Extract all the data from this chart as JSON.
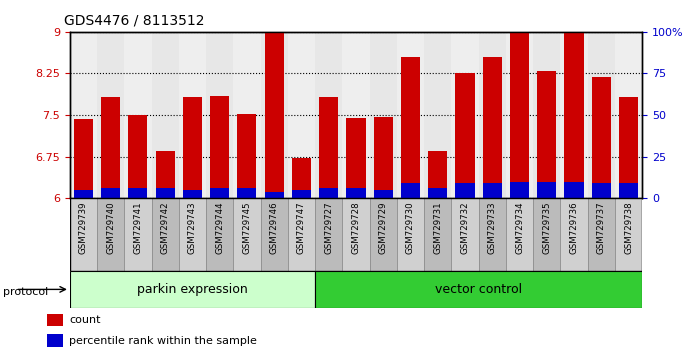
{
  "title": "GDS4476 / 8113512",
  "samples": [
    "GSM729739",
    "GSM729740",
    "GSM729741",
    "GSM729742",
    "GSM729743",
    "GSM729744",
    "GSM729745",
    "GSM729746",
    "GSM729747",
    "GSM729727",
    "GSM729728",
    "GSM729729",
    "GSM729730",
    "GSM729731",
    "GSM729732",
    "GSM729733",
    "GSM729734",
    "GSM729735",
    "GSM729736",
    "GSM729737",
    "GSM729738"
  ],
  "count_values": [
    7.42,
    7.82,
    7.5,
    6.86,
    7.83,
    7.84,
    7.52,
    8.98,
    6.73,
    7.82,
    7.45,
    7.46,
    8.55,
    6.86,
    8.25,
    8.55,
    8.98,
    8.3,
    8.98,
    8.18,
    7.82
  ],
  "blue_pct_values": [
    5,
    6,
    6,
    6,
    5,
    6,
    6,
    4,
    5,
    6,
    6,
    5,
    9,
    6,
    9,
    9,
    10,
    10,
    10,
    9,
    9
  ],
  "group1_label": "parkin expression",
  "group2_label": "vector control",
  "group1_count": 9,
  "group2_count": 12,
  "bar_color_red": "#CC0000",
  "bar_color_blue": "#0000CC",
  "group1_bg": "#CCFFCC",
  "group2_bg": "#33CC33",
  "ylim_left": [
    6,
    9
  ],
  "yticks_left": [
    6,
    6.75,
    7.5,
    8.25,
    9
  ],
  "yticks_right": [
    0,
    25,
    50,
    75,
    100
  ],
  "legend_count": "count",
  "legend_pct": "percentile rank within the sample",
  "left_tick_color": "#CC0000",
  "right_tick_color": "#0000CC",
  "protocol_label": "protocol",
  "col_bg_even": "#D0D0D0",
  "col_bg_odd": "#BBBBBB",
  "background_color": "#ffffff"
}
